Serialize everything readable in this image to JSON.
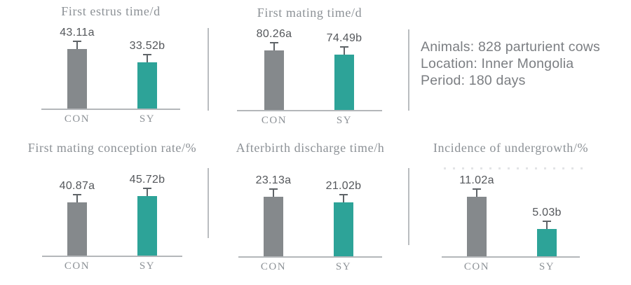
{
  "figure": {
    "kind": "five-panel bar chart summary with study info",
    "groups_compared": [
      "CON",
      "SY"
    ]
  },
  "colors": {
    "con_bar": "#85898c",
    "sy_bar": "#2da398",
    "error_bar": "#5f6468",
    "title_text": "#8c9196",
    "value_text": "#54575b",
    "tick_text": "#8c9196",
    "axis_line": "#b4b7ba",
    "divider_line": "#babdc0",
    "info_text": "#7b7e82"
  },
  "info_panel": {
    "lines": [
      "Animals: 828 parturient cows",
      "Location: Inner Mongolia",
      "Period: 180 days"
    ]
  },
  "chart_data": [
    {
      "type": "bar",
      "title": "First estrus time/d",
      "categories": [
        "CON",
        "SY"
      ],
      "values": [
        43.11,
        33.52
      ],
      "value_labels": [
        "43.11a",
        "33.52b"
      ],
      "series_colors": [
        "#85898c",
        "#2da398"
      ],
      "error_bars": true,
      "axis": "baseline-only",
      "legend": "none"
    },
    {
      "type": "bar",
      "title": "First mating time/d",
      "categories": [
        "CON",
        "SY"
      ],
      "values": [
        80.26,
        74.49
      ],
      "value_labels": [
        "80.26a",
        "74.49b"
      ],
      "series_colors": [
        "#85898c",
        "#2da398"
      ],
      "error_bars": true,
      "axis": "baseline-only",
      "legend": "none"
    },
    {
      "type": "bar",
      "title": "First mating conception rate/%",
      "categories": [
        "CON",
        "SY"
      ],
      "values": [
        40.87,
        45.72
      ],
      "value_labels": [
        "40.87a",
        "45.72b"
      ],
      "series_colors": [
        "#85898c",
        "#2da398"
      ],
      "error_bars": true,
      "axis": "baseline-only",
      "legend": "none"
    },
    {
      "type": "bar",
      "title": "Afterbirth discharge time/h",
      "categories": [
        "CON",
        "SY"
      ],
      "values": [
        23.13,
        21.02
      ],
      "value_labels": [
        "23.13a",
        "21.02b"
      ],
      "series_colors": [
        "#85898c",
        "#2da398"
      ],
      "error_bars": true,
      "axis": "baseline-only",
      "legend": "none"
    },
    {
      "type": "bar",
      "title": "Incidence of undergrowth/%",
      "categories": [
        "CON",
        "SY"
      ],
      "values": [
        11.02,
        5.03
      ],
      "value_labels": [
        "11.02a",
        "5.03b"
      ],
      "series_colors": [
        "#85898c",
        "#2da398"
      ],
      "error_bars": true,
      "axis": "baseline-only",
      "legend": "none"
    }
  ]
}
